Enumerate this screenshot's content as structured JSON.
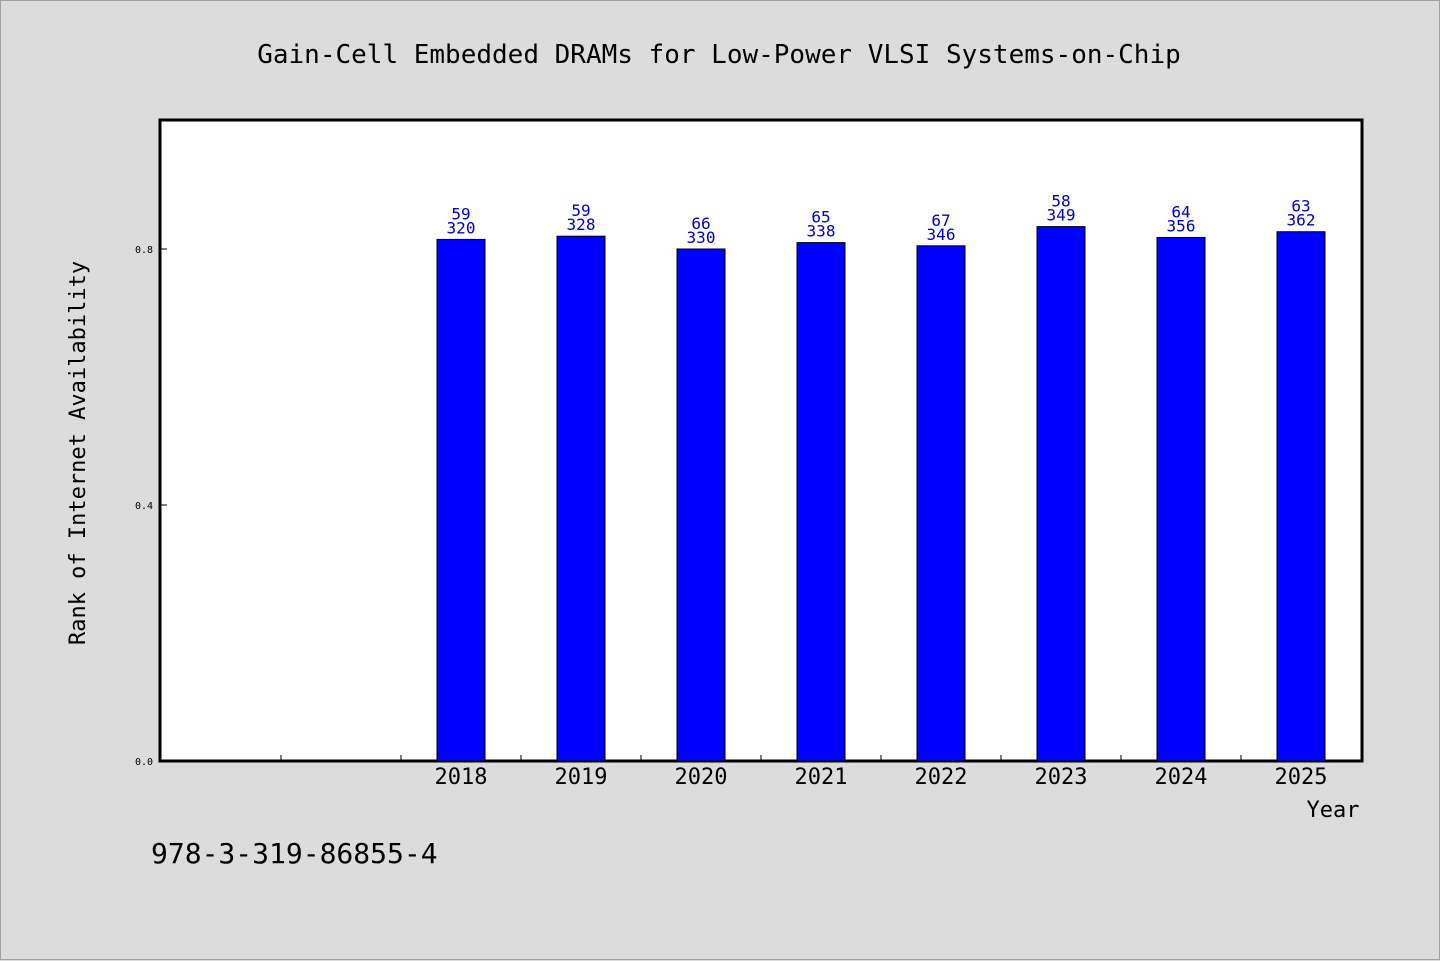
{
  "chart_data": {
    "type": "bar",
    "title": "Gain-Cell Embedded DRAMs for Low-Power VLSI Systems-on-Chip",
    "xlabel": "Year",
    "ylabel": "Rank of Internet Availability",
    "ylim": [
      0,
      1.0
    ],
    "yticks": [
      "0.0",
      "0.4",
      "0.8"
    ],
    "categories": [
      "2018",
      "2019",
      "2020",
      "2021",
      "2022",
      "2023",
      "2024",
      "2025"
    ],
    "values": [
      0.815,
      0.82,
      0.8,
      0.81,
      0.805,
      0.835,
      0.818,
      0.827
    ],
    "label_top": [
      "59",
      "59",
      "66",
      "65",
      "67",
      "58",
      "64",
      "63"
    ],
    "label_bottom": [
      "320",
      "328",
      "330",
      "338",
      "346",
      "349",
      "356",
      "362"
    ],
    "bar_color": "#0000ff",
    "label_color": "#0000cc",
    "grid": false,
    "empty_slots_before": 2
  },
  "footnote": "978-3-319-86855-4"
}
